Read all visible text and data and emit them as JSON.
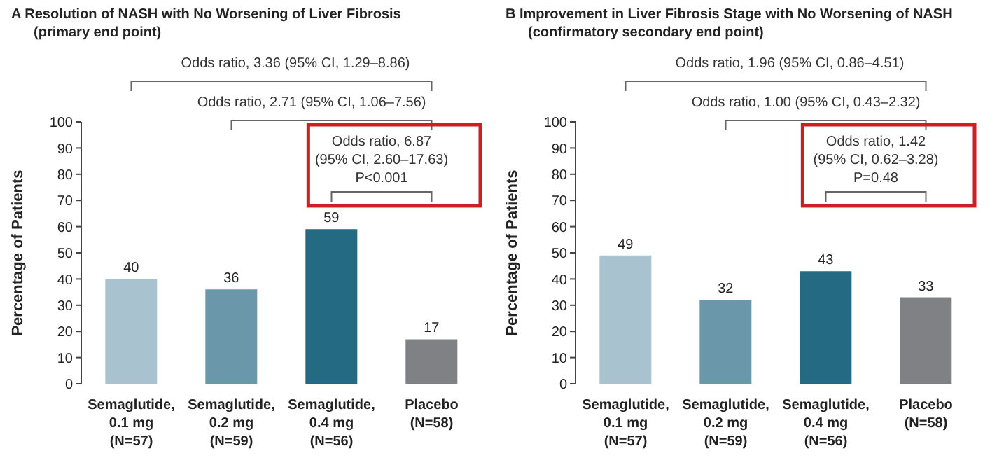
{
  "chart_data": [
    {
      "type": "bar",
      "title": "A  Resolution of NASH with No Worsening of Liver Fibrosis",
      "subtitle": "(primary end point)",
      "ylabel": "Percentage of Patients",
      "categories": [
        "Semaglutide,\n0.1 mg\n(N=57)",
        "Semaglutide,\n0.2 mg\n(N=59)",
        "Semaglutide,\n0.4 mg\n(N=56)",
        "Placebo\n(N=58)"
      ],
      "values": [
        40,
        36,
        59,
        17
      ],
      "colors": [
        "#a9c2cf",
        "#6b97ab",
        "#236a82",
        "#7f8184"
      ],
      "ylim": [
        0,
        100
      ],
      "yticks": [
        0,
        10,
        20,
        30,
        40,
        50,
        60,
        70,
        80,
        90,
        100
      ],
      "grid": false,
      "data_labels": true,
      "annotations": [
        "Odds ratio, 3.36 (95% CI, 1.29–8.86)",
        "Odds ratio, 2.71 (95% CI, 1.06–7.56)",
        "Odds ratio, 6.87\n(95% CI, 2.60–17.63)\nP<0.001"
      ]
    },
    {
      "type": "bar",
      "title": "B  Improvement in Liver Fibrosis Stage with No Worsening of NASH",
      "subtitle": "(confirmatory secondary end point)",
      "ylabel": "Percentage of Patients",
      "categories": [
        "Semaglutide,\n0.1 mg\n(N=57)",
        "Semaglutide,\n0.2 mg\n(N=59)",
        "Semaglutide,\n0.4 mg\n(N=56)",
        "Placebo\n(N=58)"
      ],
      "values": [
        49,
        32,
        43,
        33
      ],
      "colors": [
        "#a9c2cf",
        "#6b97ab",
        "#236a82",
        "#7f8184"
      ],
      "ylim": [
        0,
        100
      ],
      "yticks": [
        0,
        10,
        20,
        30,
        40,
        50,
        60,
        70,
        80,
        90,
        100
      ],
      "grid": false,
      "data_labels": true,
      "annotations": [
        "Odds ratio, 1.96 (95% CI, 0.86–4.51)",
        "Odds ratio, 1.00 (95% CI, 0.43–2.32)",
        "Odds ratio, 1.42\n(95% CI, 0.62–3.28)\nP=0.48"
      ]
    }
  ]
}
